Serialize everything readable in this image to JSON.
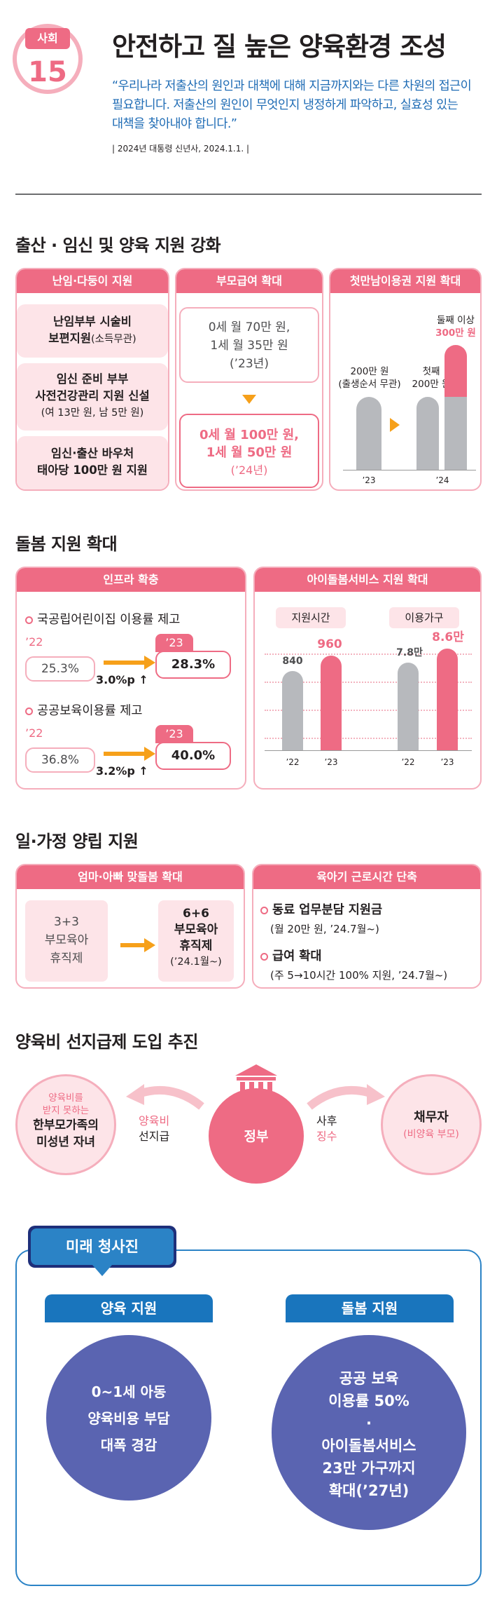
{
  "header": {
    "badge_category": "사회",
    "badge_number": "15",
    "title": "안전하고 질 높은 양육환경 조성",
    "quote_lines": [
      "“우리나라 저출산의 원인과 대책에 대해 지금까지와는 다른 차원의 접근이",
      "필요합니다. 저출산의 원인이 무엇인지 냉정하게 파악하고, 실효성 있는",
      "대책을 찾아내야 합니다.”"
    ],
    "source": "| 2024년 대통령 신년사, 2024.1.1. |"
  },
  "section1": {
    "title": "출산 · 임신 및 양육 지원 강화",
    "col1": {
      "tab": "난임·다둥이 지원",
      "box1_line1": "난임부부 시술비",
      "box1_line2": "보편지원",
      "box1_small": "(소득무관)",
      "box2_line1": "임신 준비 부부",
      "box2_line2": "사전건강관리 지원 신설",
      "box2_small": "(여 13만 원, 남 5만 원)",
      "box3_line1": "임신·출산 바우처",
      "box3_line2": "태아당 100만 원 지원"
    },
    "col2": {
      "tab": "부모급여 확대",
      "before_line1": "0세 월 70만 원,",
      "before_line2": "1세 월 35만 원",
      "before_year": "(’23년)",
      "after_line1": "0세 월 100만 원,",
      "after_line2": "1세 월 50만 원",
      "after_year": "(’24년)"
    },
    "col3": {
      "tab": "첫만남이용권 지원 확대",
      "bar1_label_line1": "200만 원",
      "bar1_label_line2": "(출생순서 무관)",
      "bar2_label_line1": "첫째",
      "bar2_label_line2": "200만 원",
      "bar3_label_line1": "둘째 이상",
      "bar3_label_line2": "300만 원",
      "x1": "’23",
      "x2": "’24"
    }
  },
  "section2": {
    "title": "돌봄 지원 확대",
    "left": {
      "tab": "인프라 확충",
      "item1": "국공립어린이집 이용률 제고",
      "item1_y1": "’22",
      "item1_v1": "25.3%",
      "item1_y2": "’23",
      "item1_v2": "28.3%",
      "item1_delta": "3.0%p",
      "item2": "공공보육이용률 제고",
      "item2_y1": "’22",
      "item2_v1": "36.8%",
      "item2_y2": "’23",
      "item2_v2": "40.0%",
      "item2_delta": "3.2%p",
      "up_arrow": "↑"
    },
    "right": {
      "tab": "아이돌봄서비스 지원 확대",
      "label1": "지원시간",
      "label2": "이용가구",
      "v1": "840",
      "v2": "960",
      "v3": "7.8만",
      "v4": "8.6만",
      "x1": "’22",
      "x2": "’23",
      "x3": "’22",
      "x4": "’23"
    }
  },
  "section3": {
    "title": "일·가정 양립 지원",
    "left": {
      "tab": "엄마·아빠 맞돌봄 확대",
      "before_line1": "3+3",
      "before_line2": "부모육아",
      "before_line3": "휴직제",
      "after_line1": "6+6",
      "after_line2": "부모육아",
      "after_line3": "휴직제",
      "after_small": "(’24.1월~)"
    },
    "right": {
      "tab": "육아기 근로시간 단축",
      "item1": "동료 업무분담 지원금",
      "item1_sub": "(월 20만 원, ’24.7월~)",
      "item2": "급여 확대",
      "item2_sub": "(주 5→10시간 100% 지원, ’24.7월~)"
    }
  },
  "section4": {
    "title": "양육비 선지급제 도입 추진",
    "left_line1": "양육비를",
    "left_line2": "받지 못하는",
    "left_line3": "한부모가족의",
    "left_line4": "미성년 자녀",
    "left_arrow_line1": "양육비",
    "left_arrow_line2": "선지급",
    "center": "정부",
    "right_arrow_line1": "사후",
    "right_arrow_line2": "징수",
    "right_line1": "채무자",
    "right_line2": "(비양육 부모)"
  },
  "future": {
    "badge": "미래 청사진",
    "left": {
      "tab": "양육 지원",
      "line1": "0~1세 아동",
      "line2": "양육비용 부담",
      "line3": "대폭 경감"
    },
    "right": {
      "tab": "돌봄 지원",
      "line1": "공공 보육",
      "line2": "이용률 50%",
      "dot": "·",
      "line3": "아이돌봄서비스",
      "line4": "23만 가구까지",
      "line5": "확대(’27년)"
    }
  },
  "colors": {
    "accent_pink": "#ee6b84",
    "light_pink": "#fde4e8",
    "orange": "#f6a01a",
    "blue": "#1975bd",
    "indigo": "#5a64b1",
    "gray": "#b7b9bd"
  }
}
